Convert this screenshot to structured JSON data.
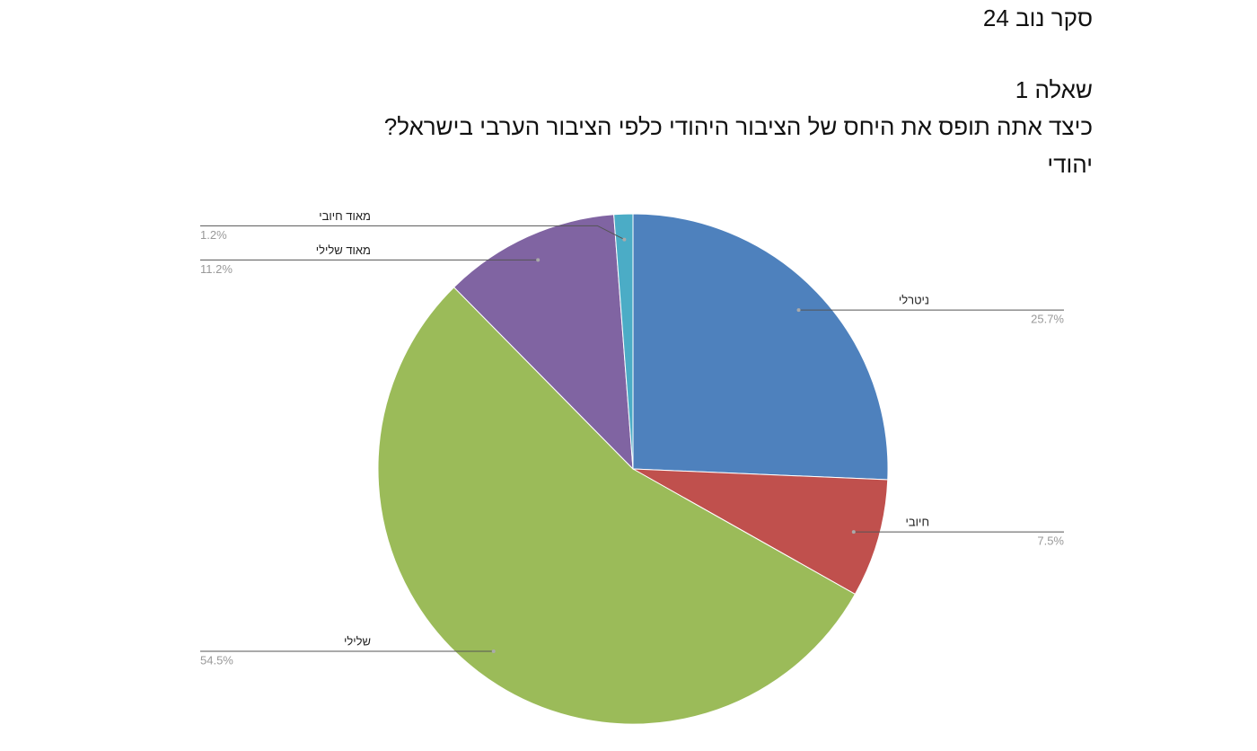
{
  "chart_data": {
    "type": "pie",
    "title": "סקר נוב 24",
    "subtitle_lines": [
      "שאלה 1",
      "כיצד אתה תופס את היחס של הציבור היהודי כלפי הציבור הערבי בישראל?",
      "יהודי"
    ],
    "categories": [
      "ניטרלי",
      "חיובי",
      "שלילי",
      "מאוד שלילי",
      "מאוד חיובי"
    ],
    "values": [
      25.7,
      7.5,
      54.5,
      11.2,
      1.2
    ],
    "value_labels": [
      "25.7%",
      "7.5%",
      "54.5%",
      "11.2%",
      "1.2%"
    ],
    "colors": [
      "#4e81bd",
      "#c0504d",
      "#9bbb59",
      "#8064a2",
      "#4bacc6"
    ]
  }
}
